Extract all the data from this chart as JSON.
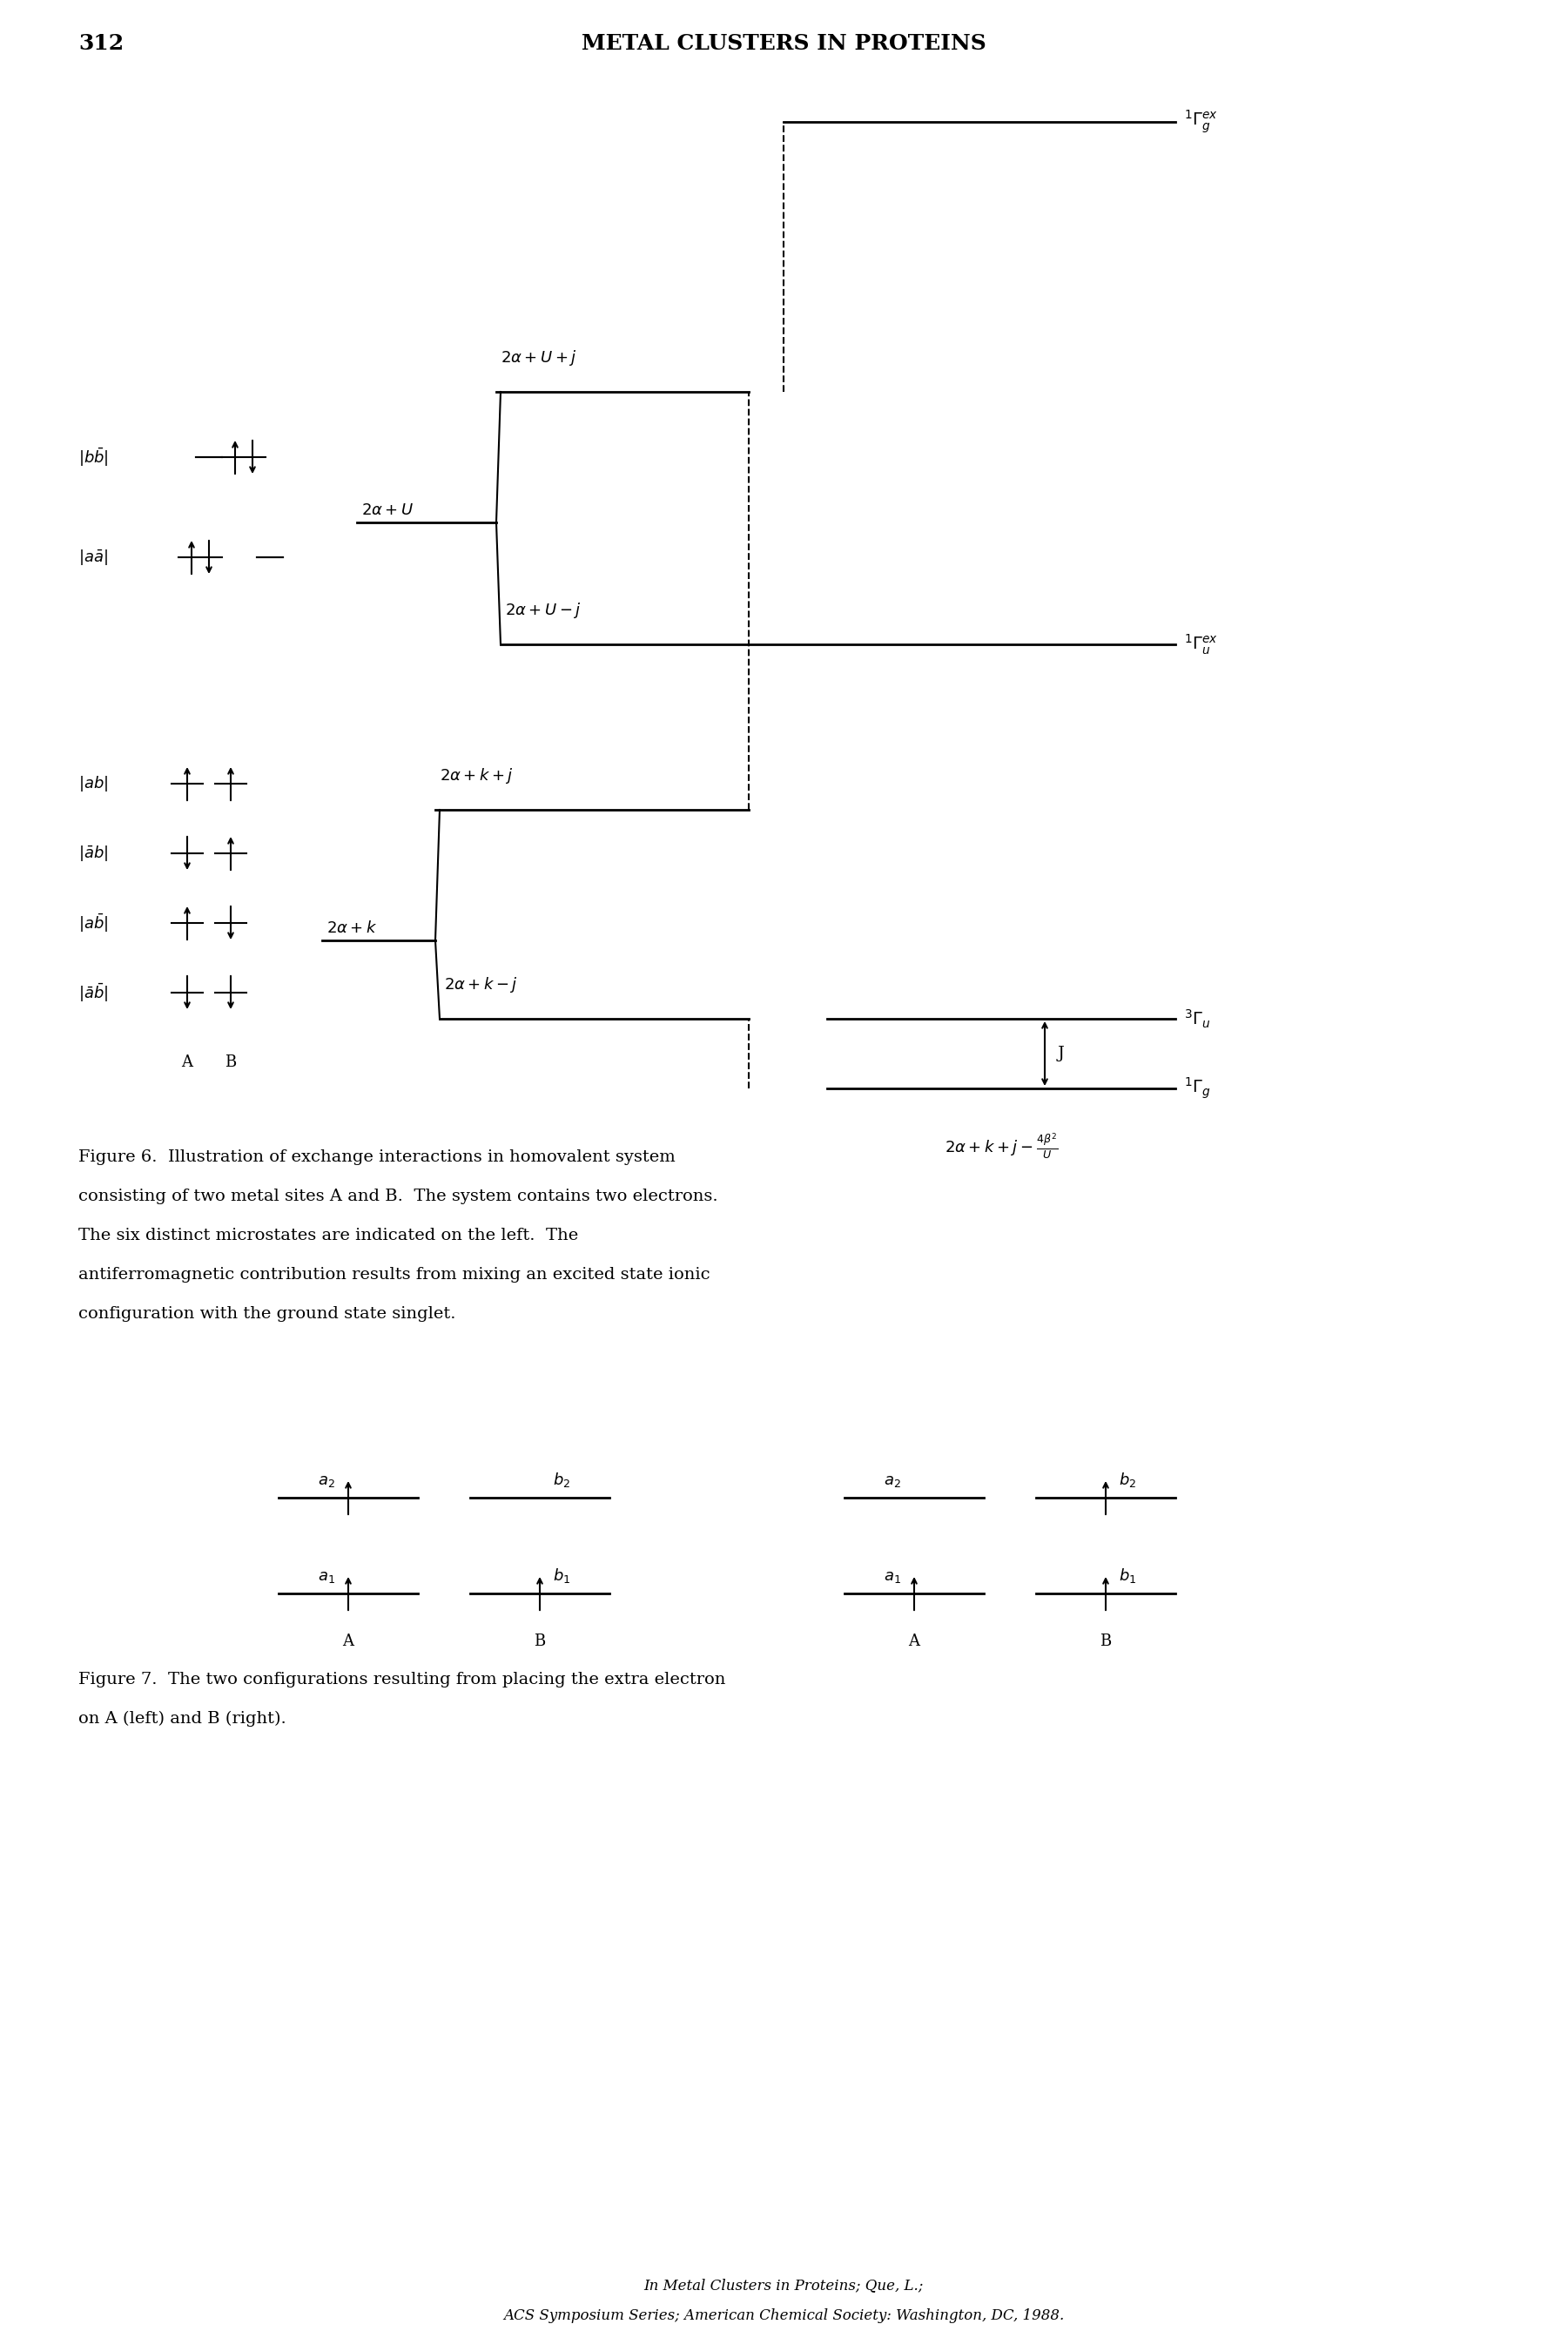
{
  "page_number": "312",
  "header": "METAL CLUSTERS IN PROTEINS",
  "bg_color": "#ffffff",
  "text_color": "#000000",
  "figure6_caption": "Figure 6.  Illustration of exchange interactions in homovalent system\nconsisting of two metal sites A and B.  The system contains two electrons.\nThe six distinct microstates are indicated on the left.  The\nantiferromagnetic contribution results from mixing an excited state ionic\nconfiguration with the ground state singlet.",
  "figure7_caption": "Figure 7.  The two configurations resulting from placing the extra electron\non A (left) and B (right).",
  "footer_line1": "In Metal Clusters in Proteins; Que, L.;",
  "footer_line2": "ACS Symposium Series; American Chemical Society: Washington, DC, 1988."
}
